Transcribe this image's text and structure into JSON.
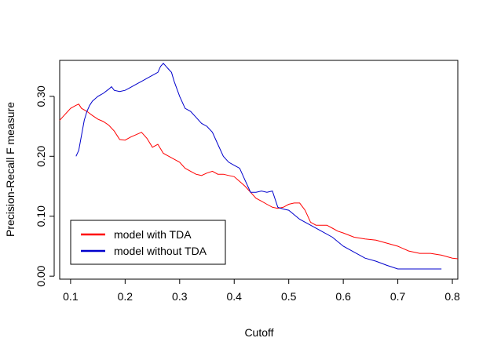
{
  "chart_data": {
    "type": "line",
    "title": "",
    "xlabel": "Cutoff",
    "ylabel": "Precision-Recall F measure",
    "xlim": [
      0.08,
      0.81
    ],
    "ylim": [
      -0.005,
      0.36
    ],
    "xticks": [
      {
        "value": 0.1,
        "label": "0.1"
      },
      {
        "value": 0.2,
        "label": "0.2"
      },
      {
        "value": 0.3,
        "label": "0.3"
      },
      {
        "value": 0.4,
        "label": "0.4"
      },
      {
        "value": 0.5,
        "label": "0.5"
      },
      {
        "value": 0.6,
        "label": "0.6"
      },
      {
        "value": 0.7,
        "label": "0.7"
      },
      {
        "value": 0.8,
        "label": "0.8"
      }
    ],
    "yticks": [
      {
        "value": 0.0,
        "label": "0.00"
      },
      {
        "value": 0.1,
        "label": "0.10"
      },
      {
        "value": 0.2,
        "label": "0.20"
      },
      {
        "value": 0.3,
        "label": "0.30"
      }
    ],
    "grid": false,
    "legend_position": "bottom-left",
    "series": [
      {
        "name": "model with TDA",
        "color": "#ff0000",
        "x": [
          0.08,
          0.09,
          0.1,
          0.11,
          0.115,
          0.12,
          0.13,
          0.14,
          0.15,
          0.16,
          0.17,
          0.18,
          0.19,
          0.2,
          0.21,
          0.22,
          0.23,
          0.24,
          0.25,
          0.26,
          0.27,
          0.28,
          0.29,
          0.3,
          0.31,
          0.32,
          0.33,
          0.34,
          0.35,
          0.36,
          0.37,
          0.38,
          0.39,
          0.4,
          0.41,
          0.42,
          0.43,
          0.44,
          0.45,
          0.46,
          0.47,
          0.48,
          0.49,
          0.5,
          0.51,
          0.52,
          0.53,
          0.54,
          0.55,
          0.56,
          0.57,
          0.58,
          0.59,
          0.6,
          0.62,
          0.64,
          0.66,
          0.68,
          0.7,
          0.72,
          0.74,
          0.76,
          0.78,
          0.8,
          0.81
        ],
        "y": [
          0.26,
          0.27,
          0.28,
          0.285,
          0.287,
          0.28,
          0.275,
          0.268,
          0.262,
          0.258,
          0.252,
          0.242,
          0.228,
          0.227,
          0.232,
          0.236,
          0.24,
          0.23,
          0.215,
          0.22,
          0.205,
          0.2,
          0.195,
          0.19,
          0.18,
          0.175,
          0.17,
          0.168,
          0.172,
          0.175,
          0.17,
          0.17,
          0.168,
          0.166,
          0.158,
          0.15,
          0.14,
          0.13,
          0.125,
          0.12,
          0.115,
          0.113,
          0.115,
          0.12,
          0.122,
          0.122,
          0.11,
          0.09,
          0.085,
          0.085,
          0.085,
          0.08,
          0.075,
          0.072,
          0.065,
          0.062,
          0.06,
          0.055,
          0.05,
          0.042,
          0.038,
          0.038,
          0.035,
          0.03,
          0.029
        ]
      },
      {
        "name": "model without TDA",
        "color": "#0000cc",
        "x": [
          0.11,
          0.115,
          0.12,
          0.125,
          0.13,
          0.135,
          0.14,
          0.15,
          0.16,
          0.17,
          0.175,
          0.18,
          0.19,
          0.2,
          0.21,
          0.22,
          0.23,
          0.24,
          0.25,
          0.26,
          0.265,
          0.27,
          0.275,
          0.28,
          0.285,
          0.29,
          0.3,
          0.31,
          0.32,
          0.33,
          0.34,
          0.35,
          0.36,
          0.37,
          0.38,
          0.39,
          0.4,
          0.41,
          0.42,
          0.43,
          0.44,
          0.45,
          0.46,
          0.47,
          0.48,
          0.49,
          0.5,
          0.52,
          0.54,
          0.56,
          0.58,
          0.6,
          0.62,
          0.64,
          0.66,
          0.68,
          0.7,
          0.72,
          0.74,
          0.76,
          0.78
        ],
        "y": [
          0.2,
          0.21,
          0.235,
          0.26,
          0.275,
          0.285,
          0.292,
          0.3,
          0.305,
          0.312,
          0.316,
          0.31,
          0.308,
          0.31,
          0.315,
          0.32,
          0.325,
          0.33,
          0.335,
          0.34,
          0.35,
          0.355,
          0.35,
          0.345,
          0.34,
          0.325,
          0.3,
          0.28,
          0.275,
          0.265,
          0.255,
          0.25,
          0.24,
          0.22,
          0.2,
          0.19,
          0.185,
          0.18,
          0.16,
          0.14,
          0.14,
          0.142,
          0.14,
          0.142,
          0.115,
          0.112,
          0.11,
          0.095,
          0.085,
          0.075,
          0.065,
          0.05,
          0.04,
          0.03,
          0.025,
          0.018,
          0.012,
          0.012,
          0.012,
          0.012,
          0.012
        ]
      }
    ]
  }
}
